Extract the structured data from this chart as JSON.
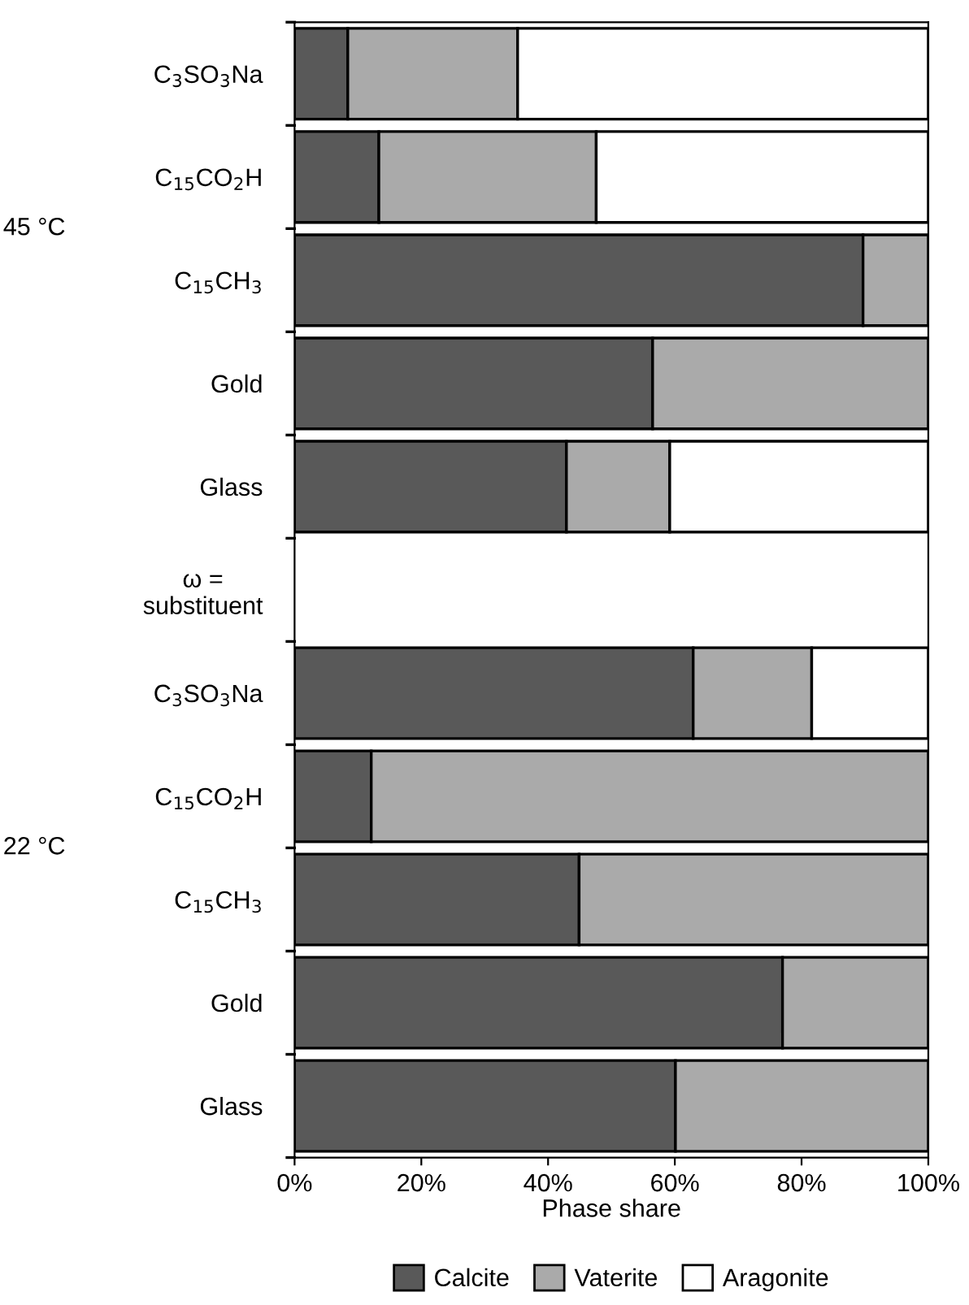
{
  "chart_data": {
    "type": "bar",
    "orientation": "horizontal",
    "stacked": true,
    "xlabel": "Phase share",
    "categories": [
      "C$_{3}$SO$_{3}$Na",
      "C$_{15}$CO$_{2}$H",
      "C$_{15}$CH$_{3}$",
      "Gold",
      "Glass",
      "ω =\nsubstituent",
      "C$_{3}$SO$_{3}$Na",
      "C$_{15}$CO$_{2}$H",
      "C$_{15}$CH$_{3}$",
      "Gold",
      "Glass"
    ],
    "series": [
      {
        "name": "Calcite",
        "color": "#595959",
        "values": [
          8.4,
          13.3,
          89.7,
          56.5,
          42.9,
          null,
          62.9,
          12.1,
          44.9,
          77.0,
          60.1
        ]
      },
      {
        "name": "Vaterite",
        "color": "#aaaaaa",
        "values": [
          26.8,
          34.3,
          10.3,
          43.5,
          16.3,
          null,
          18.7,
          87.9,
          55.1,
          23.0,
          39.9
        ]
      },
      {
        "name": "Aragonite",
        "color": "#ffffff",
        "values": [
          64.8,
          52.4,
          null,
          null,
          40.8,
          null,
          18.4,
          null,
          null,
          null,
          null
        ]
      }
    ],
    "xlim": [
      0,
      100
    ],
    "xticks": [
      {
        "value": 0,
        "label": "0%"
      },
      {
        "value": 20,
        "label": "20%"
      },
      {
        "value": 40,
        "label": "40%"
      },
      {
        "value": 60,
        "label": "60%"
      },
      {
        "value": 80,
        "label": "80%"
      },
      {
        "value": 100,
        "label": "100%"
      }
    ],
    "annotations": [
      "45 °C",
      "22 °C"
    ],
    "legend": "bottom",
    "grid": false
  }
}
